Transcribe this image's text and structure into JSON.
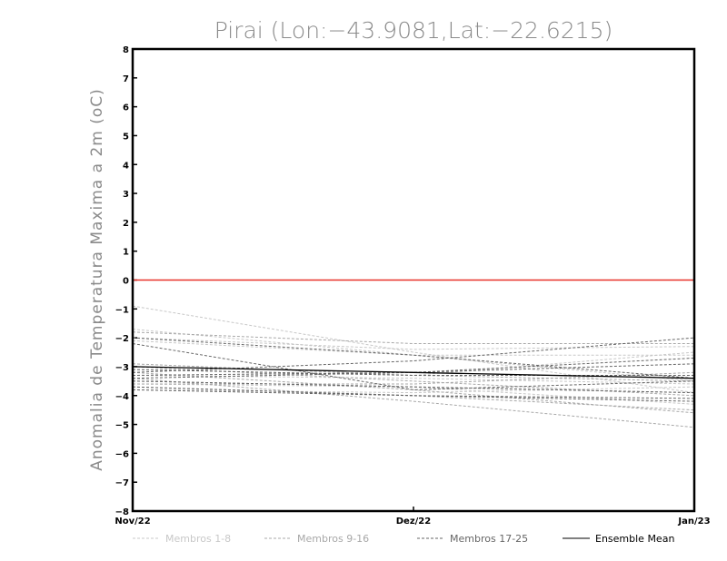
{
  "chart_data": {
    "type": "line",
    "title": "Pirai (Lon:−43.9081,Lat:−22.6215)",
    "ylabel": "Anomalia de Temperatura Maxima a 2m (oC)",
    "xlabel": "",
    "categories": [
      "Nov/22",
      "Dez/22",
      "Jan/23"
    ],
    "ylim": [
      -8,
      8
    ],
    "yticks": [
      "8",
      "7",
      "6",
      "5",
      "4",
      "3",
      "2",
      "1",
      "0",
      "−1",
      "−2",
      "−3",
      "−4",
      "−5",
      "−6",
      "−7",
      "−8"
    ],
    "ytick_values": [
      8,
      7,
      6,
      5,
      4,
      3,
      2,
      1,
      0,
      -1,
      -2,
      -3,
      -4,
      -5,
      -6,
      -7,
      -8
    ],
    "zero_line_color": "#e8322a",
    "groups": [
      {
        "label": "Membros 1-8",
        "color": "#c8c8c8",
        "dashed": true,
        "series": [
          [
            -0.9,
            -2.5,
            -3.9
          ],
          [
            -1.7,
            -2.6,
            -3.5
          ],
          [
            -2.0,
            -2.4,
            -2.3
          ],
          [
            -2.1,
            -2.6,
            -2.6
          ],
          [
            -3.1,
            -3.3,
            -2.5
          ],
          [
            -3.3,
            -3.4,
            -3.6
          ],
          [
            -3.6,
            -3.7,
            -4.3
          ],
          [
            -3.8,
            -3.9,
            -3.7
          ]
        ]
      },
      {
        "label": "Membros 9-16",
        "color": "#a8a8a8",
        "dashed": true,
        "series": [
          [
            -1.8,
            -2.2,
            -2.2
          ],
          [
            -2.9,
            -3.3,
            -3.5
          ],
          [
            -3.0,
            -3.5,
            -4.0
          ],
          [
            -3.2,
            -3.8,
            -4.6
          ],
          [
            -3.4,
            -4.2,
            -5.1
          ],
          [
            -3.5,
            -3.7,
            -3.9
          ],
          [
            -3.6,
            -3.6,
            -3.2
          ],
          [
            -3.7,
            -4.0,
            -4.5
          ]
        ]
      },
      {
        "label": "Membros 17-25",
        "color": "#666666",
        "dashed": true,
        "series": [
          [
            -2.2,
            -3.8,
            -3.5
          ],
          [
            -3.1,
            -3.3,
            -3.3
          ],
          [
            -3.2,
            -2.8,
            -2.0
          ],
          [
            -3.3,
            -3.2,
            -2.9
          ],
          [
            -3.4,
            -3.2,
            -2.7
          ],
          [
            -3.5,
            -3.7,
            -3.9
          ],
          [
            -3.7,
            -4.0,
            -4.2
          ],
          [
            -3.8,
            -4.0,
            -4.1
          ],
          [
            -2.0,
            -2.6,
            -3.4
          ]
        ]
      },
      {
        "label": "Ensemble Mean",
        "color": "#000000",
        "dashed": false,
        "series": [
          [
            -3.0,
            -3.2,
            -3.4
          ]
        ]
      }
    ]
  }
}
